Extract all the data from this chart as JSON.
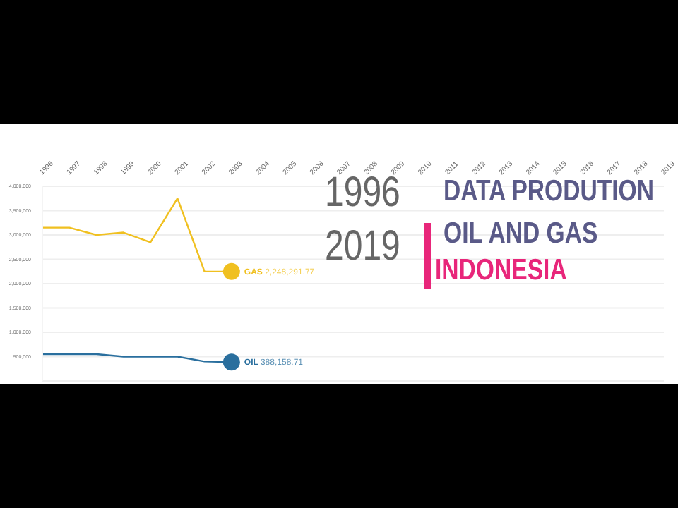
{
  "chart_data": {
    "type": "line",
    "title": "DATA PRODUTION",
    "subtitle": "OIL AND GAS",
    "categories": [
      "1996",
      "1997",
      "1998",
      "1999",
      "2000",
      "2001",
      "2002",
      "2003",
      "2004",
      "2005",
      "2006",
      "2007",
      "2008",
      "2009",
      "2010",
      "2011",
      "2012",
      "2013",
      "2014",
      "2015",
      "2016",
      "2017",
      "2018",
      "2019"
    ],
    "series": [
      {
        "name": "GAS",
        "color": "#f0c020",
        "values": [
          3150000,
          3150000,
          3000000,
          3050000,
          2850000,
          3750000,
          2250000,
          2248291.77,
          null,
          null,
          null,
          null,
          null,
          null,
          null,
          null,
          null,
          null,
          null,
          null,
          null,
          null,
          null,
          null
        ]
      },
      {
        "name": "OIL",
        "color": "#2a6f9e",
        "values": [
          550000,
          550000,
          550000,
          500000,
          500000,
          500000,
          400000,
          388158.71,
          null,
          null,
          null,
          null,
          null,
          null,
          null,
          null,
          null,
          null,
          null,
          null,
          null,
          null,
          null,
          null
        ]
      }
    ],
    "ylim": [
      0,
      4000000
    ],
    "yticks": [
      {
        "value": 500000,
        "label": "500,000"
      },
      {
        "value": 1000000,
        "label": "1,000,000"
      },
      {
        "value": 1500000,
        "label": "1,500,000"
      },
      {
        "value": 2000000,
        "label": "2,000,000"
      },
      {
        "value": 2500000,
        "label": "2,500,000"
      },
      {
        "value": 3000000,
        "label": "3,000,000"
      },
      {
        "value": 3500000,
        "label": "3,500,000"
      },
      {
        "value": 4000000,
        "label": "4,000,000"
      }
    ],
    "grid": "y",
    "legend": false,
    "annotations": [
      "1996",
      "2019",
      "INDONESIA",
      {
        "text": "2,248,291.77",
        "x": "2003",
        "y": 2248291.77
      },
      {
        "text": "388,158.71",
        "x": "2003",
        "y": 388158.71
      }
    ]
  }
}
